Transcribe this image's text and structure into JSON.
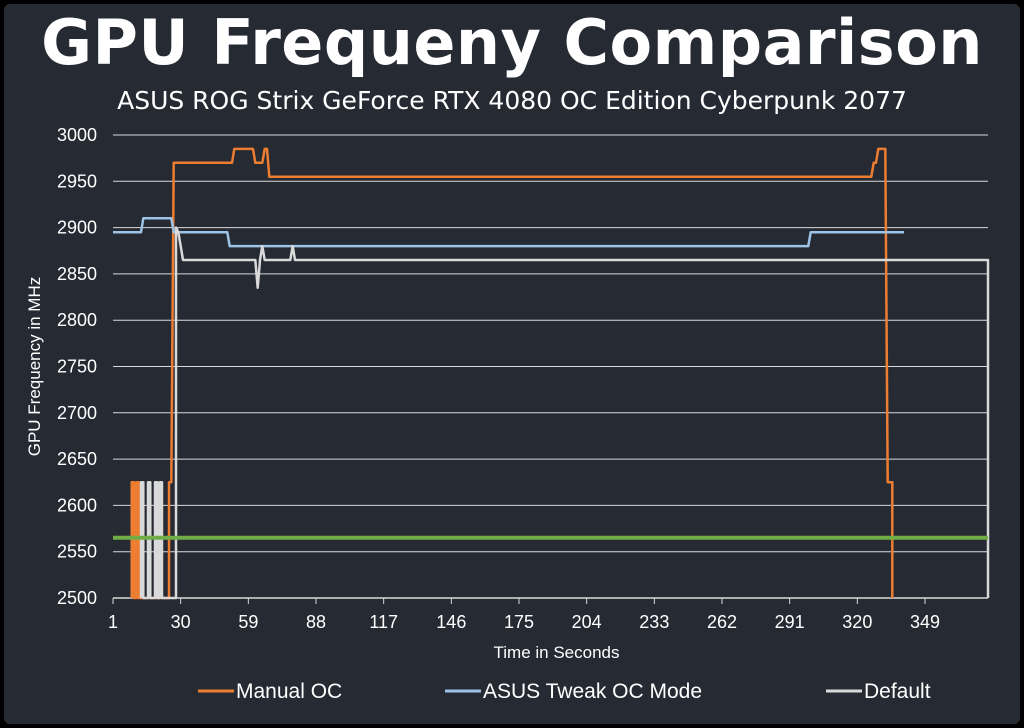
{
  "chart_data": {
    "type": "line",
    "title": "GPU Frequeny Comparison",
    "subtitle": "ASUS ROG Strix GeForce RTX 4080 OC Edition  Cyberpunk 2077",
    "xlabel": "Time in Seconds",
    "ylabel": "GPU Frequency in MHz",
    "xlim": [
      1,
      376
    ],
    "ylim": [
      2500,
      3000
    ],
    "x_ticks": [
      1,
      30,
      59,
      88,
      117,
      146,
      175,
      204,
      233,
      262,
      291,
      320,
      349
    ],
    "y_ticks": [
      2500,
      2550,
      2600,
      2650,
      2700,
      2750,
      2800,
      2850,
      2900,
      2950,
      3000
    ],
    "grid": true,
    "legend_position": "bottom",
    "reference_line": {
      "y": 2565,
      "color": "#70ad47"
    },
    "series": [
      {
        "name": "Manual OC",
        "color": "#ed7d31",
        "points": [
          [
            9,
            2500
          ],
          [
            9,
            2625
          ],
          [
            10,
            2625
          ],
          [
            10,
            2500
          ],
          [
            11,
            2500
          ],
          [
            11,
            2625
          ],
          [
            12,
            2625
          ],
          [
            12,
            2500
          ],
          [
            25,
            2500
          ],
          [
            25,
            2625
          ],
          [
            26,
            2625
          ],
          [
            27,
            2970
          ],
          [
            52,
            2970
          ],
          [
            53,
            2985
          ],
          [
            61,
            2985
          ],
          [
            62,
            2970
          ],
          [
            65,
            2970
          ],
          [
            66,
            2985
          ],
          [
            67,
            2985
          ],
          [
            68,
            2955
          ],
          [
            326,
            2955
          ],
          [
            327,
            2970
          ],
          [
            328,
            2970
          ],
          [
            329,
            2985
          ],
          [
            332,
            2985
          ],
          [
            333,
            2625
          ],
          [
            335,
            2625
          ],
          [
            335,
            2500
          ]
        ]
      },
      {
        "name": "ASUS Tweak OC Mode",
        "color": "#9dc3e6",
        "points": [
          [
            1,
            2895
          ],
          [
            13,
            2895
          ],
          [
            14,
            2910
          ],
          [
            26,
            2910
          ],
          [
            27,
            2895
          ],
          [
            50,
            2895
          ],
          [
            51,
            2880
          ],
          [
            299,
            2880
          ],
          [
            300,
            2895
          ],
          [
            340,
            2895
          ]
        ]
      },
      {
        "name": "Default",
        "color": "#d9d9d9",
        "points": [
          [
            13,
            2500
          ],
          [
            13,
            2625
          ],
          [
            14,
            2625
          ],
          [
            14,
            2500
          ],
          [
            16,
            2500
          ],
          [
            16,
            2625
          ],
          [
            17,
            2625
          ],
          [
            17,
            2500
          ],
          [
            19,
            2500
          ],
          [
            19,
            2625
          ],
          [
            20,
            2625
          ],
          [
            20,
            2500
          ],
          [
            21,
            2500
          ],
          [
            21,
            2625
          ],
          [
            22,
            2625
          ],
          [
            22,
            2500
          ],
          [
            28,
            2500
          ],
          [
            28,
            2900
          ],
          [
            29,
            2895
          ],
          [
            30,
            2880
          ],
          [
            31,
            2865
          ],
          [
            62,
            2865
          ],
          [
            63,
            2835
          ],
          [
            64,
            2865
          ],
          [
            65,
            2880
          ],
          [
            66,
            2865
          ],
          [
            77,
            2865
          ],
          [
            78,
            2880
          ],
          [
            79,
            2865
          ],
          [
            376,
            2865
          ],
          [
            376,
            2500
          ]
        ]
      }
    ]
  }
}
